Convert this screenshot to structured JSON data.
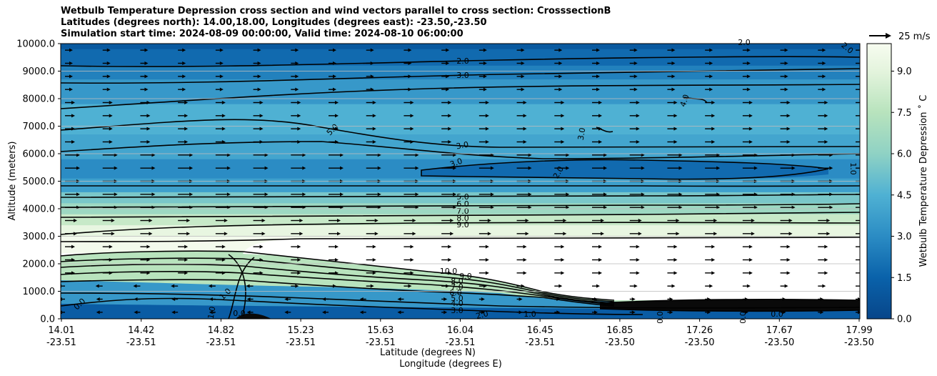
{
  "chart_data": {
    "type": "contour",
    "title_lines": [
      "Wetbulb Temperature Depression cross section and wind vectors parallel to cross section: CrosssectionB",
      "Latitudes (degrees north): 14.00,18.00, Longitudes (degrees east): -23.50,-23.50",
      "Simulation start time: 2024-08-09 00:00:00, Valid time: 2024-08-10 06:00:00"
    ],
    "ylabel": "Altitude (meters)",
    "xlabel_lat": "Latitude (degrees N)",
    "xlabel_lon": "Longitude (degrees E)",
    "ylim": [
      0,
      10000
    ],
    "y_ticks": [
      "0.0",
      "1000.0",
      "2000.0",
      "3000.0",
      "4000.0",
      "5000.0",
      "6000.0",
      "7000.0",
      "8000.0",
      "9000.0",
      "10000.0"
    ],
    "y_tick_values": [
      0,
      1000,
      2000,
      3000,
      4000,
      5000,
      6000,
      7000,
      8000,
      9000,
      10000
    ],
    "x_ticks": [
      {
        "lat": "14.01",
        "lon": "-23.51"
      },
      {
        "lat": "14.42",
        "lon": "-23.51"
      },
      {
        "lat": "14.82",
        "lon": "-23.51"
      },
      {
        "lat": "15.23",
        "lon": "-23.51"
      },
      {
        "lat": "15.63",
        "lon": "-23.51"
      },
      {
        "lat": "16.04",
        "lon": "-23.51"
      },
      {
        "lat": "16.45",
        "lon": "-23.51"
      },
      {
        "lat": "16.85",
        "lon": "-23.50"
      },
      {
        "lat": "17.26",
        "lon": "-23.50"
      },
      {
        "lat": "17.67",
        "lon": "-23.50"
      },
      {
        "lat": "17.99",
        "lon": "-23.50"
      }
    ],
    "colorbar": {
      "label": "Wetbulb Temperature Depression ˚ C",
      "range": [
        0,
        10
      ],
      "ticks": [
        "0.0",
        "1.5",
        "3.0",
        "4.5",
        "6.0",
        "7.5",
        "9.0"
      ],
      "tick_values": [
        0,
        1.5,
        3.0,
        4.5,
        6.0,
        7.5,
        9.0
      ]
    },
    "quiver_key": "25 m/s",
    "contour_labels": [
      "2.0",
      "3.0",
      "4.0",
      "5.0",
      "3.0",
      "3.0",
      "3.0",
      "2.0",
      "5.0",
      "6.0",
      "7.0",
      "8.0",
      "9.0",
      "10.0",
      "9.0",
      "8.0",
      "7.0",
      "6.0",
      "5.0",
      "4.0",
      "3.0",
      "2.0",
      "1.0",
      "1.0",
      "0.0",
      "0.0",
      "1.0",
      "1.0",
      "2.0",
      "2.0",
      "0.0",
      "0.0",
      "0.0"
    ],
    "layers": [
      {
        "alt_bottom": 9800,
        "alt_top": 10000,
        "value": 1.0
      },
      {
        "alt_bottom": 9200,
        "alt_top": 9800,
        "value": 1.8
      },
      {
        "alt_bottom": 8700,
        "alt_top": 9200,
        "value": 2.6
      },
      {
        "alt_bottom": 7800,
        "alt_top": 8700,
        "value": 3.5
      },
      {
        "alt_bottom": 6700,
        "alt_top": 7800,
        "value": 4.5
      },
      {
        "alt_bottom": 5800,
        "alt_top": 6700,
        "value": 4.0
      },
      {
        "alt_bottom": 5100,
        "alt_top": 5800,
        "value": 3.0
      },
      {
        "alt_bottom": 4600,
        "alt_top": 5100,
        "value": 3.8
      },
      {
        "alt_bottom": 4200,
        "alt_top": 4600,
        "value": 5.5
      },
      {
        "alt_bottom": 3800,
        "alt_top": 4200,
        "value": 6.5
      },
      {
        "alt_bottom": 3400,
        "alt_top": 3800,
        "value": 8.0
      },
      {
        "alt_bottom": 3000,
        "alt_top": 3400,
        "value": 9.2
      },
      {
        "alt_bottom": 2400,
        "alt_top": 3000,
        "value": 9.8
      }
    ],
    "colors": {
      "missing": "#ffffff",
      "contour_line": "#000000",
      "vector": "#000000"
    }
  }
}
